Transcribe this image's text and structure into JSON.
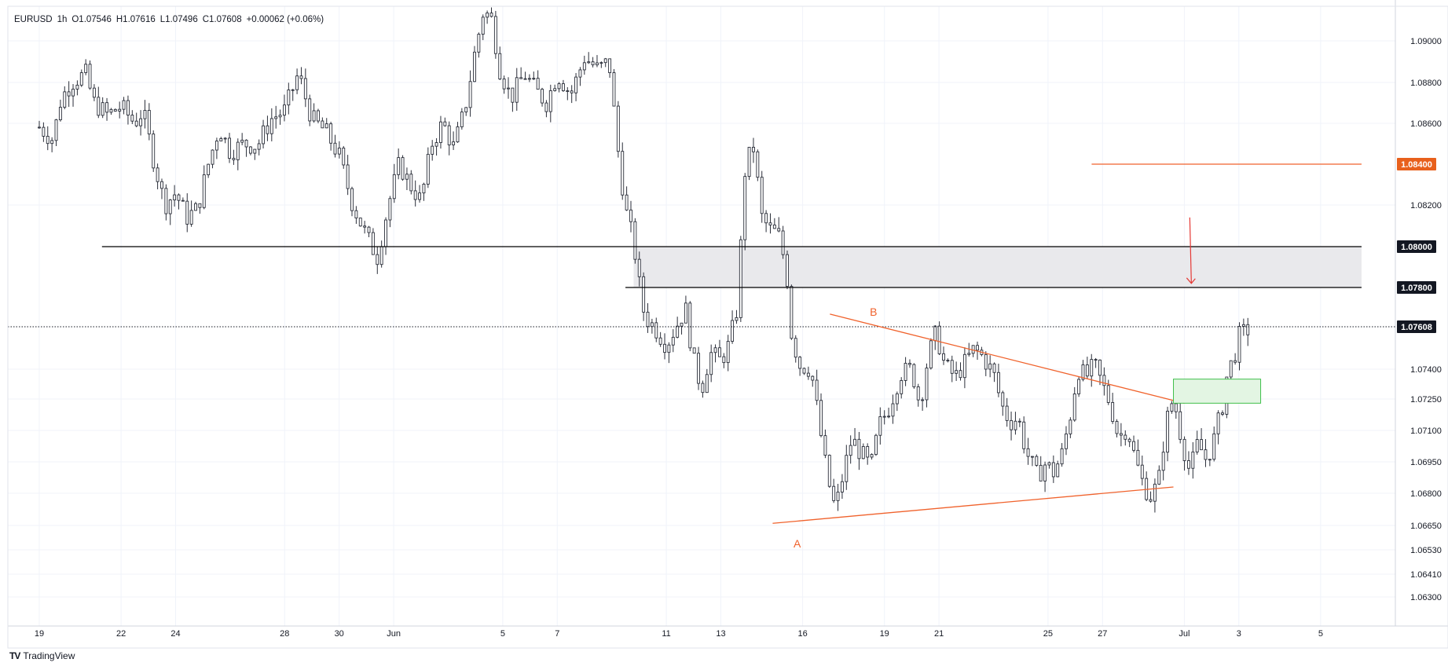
{
  "legend": {
    "symbol": "EURUSD",
    "interval": "1h",
    "open": "O1.07546",
    "high": "H1.07616",
    "low": "L1.07496",
    "close": "C1.07608",
    "change": "+0.00062 (+0.06%)"
  },
  "brand": {
    "logo": "TV",
    "name": "TradingView"
  },
  "colors": {
    "candle": "#2a2e39",
    "trendline": "#f0622c",
    "level_line": "#000000",
    "zone_fill": "#e9e9ec",
    "target_zone_fill": "#e3f5e3",
    "target_zone_stroke": "#3fbf4a",
    "orange_badge": "#e8601c",
    "dark_badge": "#131722",
    "grid": "#f0f3fa"
  },
  "chart_data": {
    "type": "candlestick",
    "symbol": "EURUSD",
    "interval": "1h",
    "x_tick_labels": [
      "19",
      "22",
      "24",
      "28",
      "30",
      "Jun",
      "5",
      "7",
      "11",
      "13",
      "16",
      "19",
      "21",
      "25",
      "27",
      "Jul",
      "3",
      "5"
    ],
    "x_tick_positions": [
      0,
      3,
      5,
      9,
      11,
      13,
      17,
      19,
      23,
      25,
      28,
      31,
      33,
      37,
      39,
      42,
      44,
      47
    ],
    "x_range_days": [
      0,
      48.5
    ],
    "y_tick_labels": [
      "1.09000",
      "1.08800",
      "1.08600",
      "1.08200",
      "1.07400",
      "1.07250",
      "1.07100",
      "1.06950",
      "1.06800",
      "1.06650",
      "1.06530",
      "1.06410",
      "1.06300"
    ],
    "y_range": [
      1.0618,
      1.0919
    ],
    "price_badges": [
      {
        "value": "1.08400",
        "style": "orange"
      },
      {
        "value": "1.08000",
        "style": "dark"
      },
      {
        "value": "1.07800",
        "style": "dark"
      },
      {
        "value": "1.07608",
        "style": "dark"
      }
    ],
    "levels": [
      {
        "price": 1.08,
        "from_day": 2.3,
        "to_day": 48.5
      },
      {
        "price": 1.078,
        "from_day": 21.5,
        "to_day": 48.5
      }
    ],
    "resistance_zone": {
      "from_day": 21.8,
      "to_day": 48.5,
      "price_low": 1.078,
      "price_high": 1.08
    },
    "target_line": {
      "price": 1.084,
      "from_day": 38.6,
      "to_day": 48.5
    },
    "current_price": 1.07608,
    "trendlines": [
      {
        "points": [
          [
            26.9,
            1.0666
          ],
          [
            41.6,
            1.0683
          ]
        ]
      },
      {
        "points": [
          [
            29.0,
            1.0767
          ],
          [
            42.0,
            1.0723
          ]
        ]
      }
    ],
    "annotations": [
      {
        "text": "A",
        "day": 27.8,
        "price": 1.0662
      },
      {
        "text": "B",
        "day": 30.6,
        "price": 1.0765
      }
    ],
    "entry_zone": {
      "from_day": 41.6,
      "to_day": 44.8,
      "price_low": 1.0723,
      "price_high": 1.0735
    },
    "arrow": {
      "day": 42.2,
      "price_from": 1.0814,
      "price_to": 1.0782
    },
    "price_path": [
      [
        0,
        1.0858
      ],
      [
        0.5,
        1.0852
      ],
      [
        0.8,
        1.0872
      ],
      [
        1.2,
        1.088
      ],
      [
        1.7,
        1.0884
      ],
      [
        2.0,
        1.087
      ],
      [
        2.5,
        1.0864
      ],
      [
        3.0,
        1.0868
      ],
      [
        3.5,
        1.086
      ],
      [
        3.8,
        1.0866
      ],
      [
        4.2,
        1.0842
      ],
      [
        4.6,
        1.082
      ],
      [
        5.0,
        1.0826
      ],
      [
        5.4,
        1.0814
      ],
      [
        5.8,
        1.0818
      ],
      [
        6.2,
        1.084
      ],
      [
        6.6,
        1.0858
      ],
      [
        7.0,
        1.0846
      ],
      [
        7.5,
        1.085
      ],
      [
        8.0,
        1.0849
      ],
      [
        8.5,
        1.0862
      ],
      [
        9.0,
        1.0866
      ],
      [
        9.5,
        1.0884
      ],
      [
        10.0,
        1.0862
      ],
      [
        10.5,
        1.0856
      ],
      [
        11.0,
        1.0844
      ],
      [
        11.5,
        1.082
      ],
      [
        12.0,
        1.0805
      ],
      [
        12.4,
        1.0795
      ],
      [
        12.8,
        1.082
      ],
      [
        13.2,
        1.084
      ],
      [
        13.6,
        1.083
      ],
      [
        14.0,
        1.0822
      ],
      [
        14.4,
        1.085
      ],
      [
        14.8,
        1.086
      ],
      [
        15.2,
        1.0848
      ],
      [
        15.6,
        1.0866
      ],
      [
        16.0,
        1.0896
      ],
      [
        16.3,
        1.0915
      ],
      [
        16.6,
        1.091
      ],
      [
        16.9,
        1.0886
      ],
      [
        17.3,
        1.0872
      ],
      [
        17.8,
        1.0884
      ],
      [
        18.2,
        1.0876
      ],
      [
        18.6,
        1.087
      ],
      [
        19.0,
        1.0884
      ],
      [
        19.5,
        1.0874
      ],
      [
        20.0,
        1.0892
      ],
      [
        20.5,
        1.0886
      ],
      [
        20.9,
        1.089
      ],
      [
        21.2,
        1.085
      ],
      [
        21.5,
        1.0818
      ],
      [
        21.8,
        1.0802
      ],
      [
        22.0,
        1.0782
      ],
      [
        22.2,
        1.0766
      ],
      [
        22.6,
        1.076
      ],
      [
        23.0,
        1.0752
      ],
      [
        23.4,
        1.0762
      ],
      [
        23.7,
        1.077
      ],
      [
        24.0,
        1.0744
      ],
      [
        24.3,
        1.073
      ],
      [
        24.6,
        1.0748
      ],
      [
        25.0,
        1.0744
      ],
      [
        25.3,
        1.0752
      ],
      [
        25.6,
        1.077
      ],
      [
        25.9,
        1.084
      ],
      [
        26.2,
        1.0848
      ],
      [
        26.5,
        1.0814
      ],
      [
        26.8,
        1.0808
      ],
      [
        27.1,
        1.0806
      ],
      [
        27.4,
        1.079
      ],
      [
        27.6,
        1.0756
      ],
      [
        27.9,
        1.0742
      ],
      [
        28.3,
        1.074
      ],
      [
        28.6,
        1.0714
      ],
      [
        28.9,
        1.0688
      ],
      [
        29.2,
        1.0672
      ],
      [
        29.5,
        1.069
      ],
      [
        29.8,
        1.0706
      ],
      [
        30.2,
        1.0698
      ],
      [
        30.5,
        1.0692
      ],
      [
        30.8,
        1.0712
      ],
      [
        31.2,
        1.0722
      ],
      [
        31.6,
        1.0738
      ],
      [
        32.0,
        1.074
      ],
      [
        32.3,
        1.0722
      ],
      [
        32.6,
        1.0746
      ],
      [
        32.9,
        1.0758
      ],
      [
        33.2,
        1.0742
      ],
      [
        33.6,
        1.0736
      ],
      [
        33.9,
        1.0742
      ],
      [
        34.3,
        1.075
      ],
      [
        34.6,
        1.0746
      ],
      [
        35.0,
        1.0738
      ],
      [
        35.3,
        1.0722
      ],
      [
        35.6,
        1.0714
      ],
      [
        35.9,
        1.0716
      ],
      [
        36.2,
        1.07
      ],
      [
        36.6,
        1.0688
      ],
      [
        36.9,
        1.0694
      ],
      [
        37.2,
        1.069
      ],
      [
        37.5,
        1.0698
      ],
      [
        37.8,
        1.0716
      ],
      [
        38.1,
        1.074
      ],
      [
        38.4,
        1.0736
      ],
      [
        38.7,
        1.0742
      ],
      [
        39.0,
        1.0732
      ],
      [
        39.3,
        1.0722
      ],
      [
        39.6,
        1.0706
      ],
      [
        39.9,
        1.0712
      ],
      [
        40.2,
        1.0696
      ],
      [
        40.5,
        1.0684
      ],
      [
        40.8,
        1.0678
      ],
      [
        41.1,
        1.0688
      ],
      [
        41.3,
        1.0712
      ],
      [
        41.6,
        1.0726
      ],
      [
        41.9,
        1.0706
      ],
      [
        42.2,
        1.069
      ],
      [
        42.5,
        1.0704
      ],
      [
        42.8,
        1.0696
      ],
      [
        43.1,
        1.0706
      ],
      [
        43.4,
        1.0722
      ],
      [
        43.6,
        1.074
      ],
      [
        43.8,
        1.0744
      ],
      [
        44.0,
        1.0756
      ],
      [
        44.2,
        1.0758
      ],
      [
        44.4,
        1.076
      ]
    ]
  }
}
